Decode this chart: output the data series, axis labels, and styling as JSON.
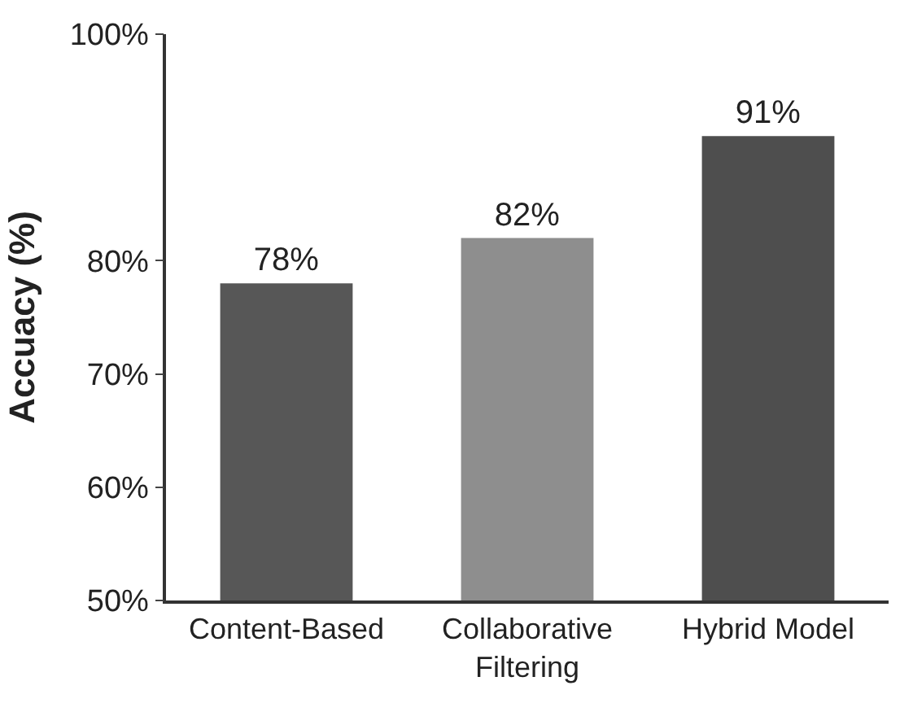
{
  "chart_data": {
    "type": "bar",
    "ylabel": "Accuacy (%)",
    "categories": [
      "Content-Based",
      "Collaborative\nFiltering",
      "Hybrid Model"
    ],
    "values": [
      78,
      82,
      91
    ],
    "colors": [
      "#575757",
      "#8e8e8e",
      "#4e4e4e"
    ],
    "value_labels": [
      "78%",
      "82%",
      "91%"
    ],
    "ylim": [
      50,
      100
    ],
    "yticks": [
      {
        "value": 50,
        "label": "50%"
      },
      {
        "value": 60,
        "label": "60%"
      },
      {
        "value": 70,
        "label": "70%"
      },
      {
        "value": 80,
        "label": "80%"
      },
      {
        "value": 100,
        "label": "100%"
      }
    ]
  }
}
